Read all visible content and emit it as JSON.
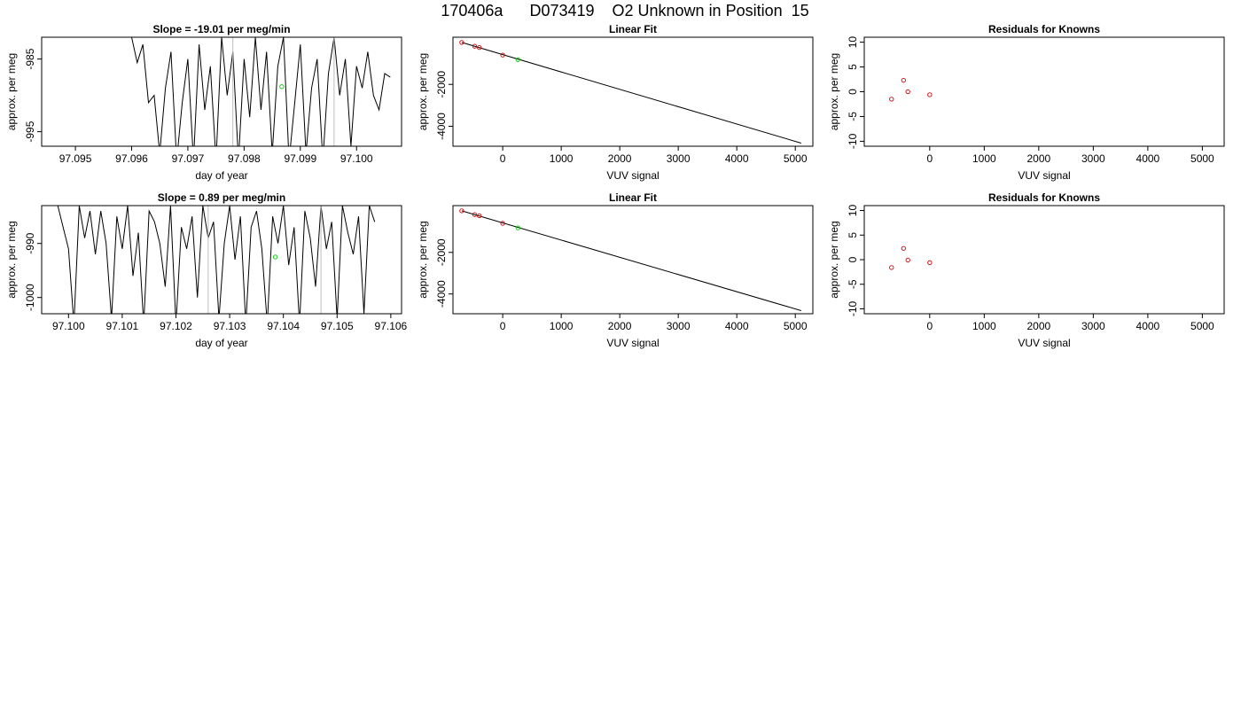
{
  "figure": {
    "title": "170406a      D073419    O2 Unknown in Position  15"
  },
  "chart_data": [
    {
      "type": "line",
      "title": "Slope =  -19.01  per meg/min",
      "xlabel": "day of year",
      "ylabel": "approx. per meg",
      "xlim": [
        97.0944,
        97.1008
      ],
      "ylim": [
        -997,
        -982
      ],
      "xticks": [
        "97.095",
        "97.096",
        "97.097",
        "97.098",
        "97.099",
        "97.100"
      ],
      "yticks": [
        "-985",
        "-995"
      ],
      "series": [
        {
          "style": "line",
          "color": "#000000",
          "x": [
            97.096,
            97.0961,
            97.0962,
            97.0963,
            97.0964,
            97.0965,
            97.0966,
            97.0967,
            97.0968,
            97.0969,
            97.097,
            97.0971,
            97.0972,
            97.0973,
            97.0974,
            97.0975,
            97.0976,
            97.0977,
            97.0978,
            97.0979,
            97.098,
            97.0981,
            97.0982,
            97.0983,
            97.0984,
            97.0985,
            97.0986,
            97.0987,
            97.0988,
            97.0989,
            97.099,
            97.0991,
            97.0992,
            97.0993,
            97.0994,
            97.0995,
            97.0996,
            97.0997,
            97.0998,
            97.0999,
            97.1,
            97.1001,
            97.1002,
            97.1003,
            97.1004,
            97.1005,
            97.1006
          ],
          "y": [
            -982,
            -985.5,
            -983,
            -991,
            -990,
            -998,
            -989,
            -984,
            -999,
            -991,
            -985,
            -999,
            -983,
            -992,
            -986,
            -999,
            -982,
            -990,
            -984,
            -999,
            -985,
            -993,
            -982,
            -992,
            -984,
            -998,
            -986,
            -982,
            -999,
            -991,
            -983,
            -998,
            -989,
            -985,
            -999,
            -987,
            -982,
            -990,
            -985,
            -997,
            -986,
            -989,
            -984,
            -990,
            -992,
            -987,
            -987.5
          ]
        },
        {
          "style": "line",
          "color": "#bebebe",
          "x": [
            97.0978,
            97.0978,
            97.0996,
            97.0996
          ],
          "y": [
            -999,
            -982,
            -999,
            -982
          ]
        },
        {
          "style": "point",
          "color": "#00cc00",
          "x": [
            97.09867
          ],
          "y": [
            -988.8
          ]
        }
      ]
    },
    {
      "type": "scatter",
      "title": "Linear Fit",
      "xlabel": "VUV signal",
      "ylabel": "approx. per meg",
      "xlim": [
        -850,
        5300
      ],
      "ylim": [
        -4950,
        250
      ],
      "xticks": [
        "0",
        "1000",
        "2000",
        "3000",
        "4000",
        "5000"
      ],
      "yticks": [
        "-2000",
        "-4000"
      ],
      "series": [
        {
          "style": "line",
          "color": "#000000",
          "x": [
            -700,
            5100
          ],
          "y": [
            0,
            -4800
          ]
        },
        {
          "style": "point",
          "color": "#cc0000",
          "x": [
            -700,
            -480,
            -400,
            0
          ],
          "y": [
            0,
            -180,
            -240,
            -600
          ]
        },
        {
          "style": "point",
          "color": "#00cc00",
          "x": [
            260
          ],
          "y": [
            -820
          ]
        }
      ]
    },
    {
      "type": "scatter",
      "title": "Residuals for Knowns",
      "xlabel": "VUV signal",
      "ylabel": "approx. per meg",
      "xlim": [
        -1200,
        5400
      ],
      "ylim": [
        -11,
        11
      ],
      "xticks": [
        "0",
        "1000",
        "2000",
        "3000",
        "4000",
        "5000"
      ],
      "yticks": [
        "-10",
        "-5",
        "0",
        "5",
        "10"
      ],
      "series": [
        {
          "style": "point",
          "color": "#cc0000",
          "x": [
            -700,
            -480,
            -400,
            0
          ],
          "y": [
            -1.5,
            2.3,
            0.0,
            -0.6
          ]
        }
      ]
    },
    {
      "type": "line",
      "title": "Slope =  0.89  per meg/min",
      "xlabel": "day of year",
      "ylabel": "approx. per meg",
      "xlim": [
        97.0995,
        97.1062
      ],
      "ylim": [
        -1003,
        -983
      ],
      "xticks": [
        "97.100",
        "97.101",
        "97.102",
        "97.103",
        "97.104",
        "97.105",
        "97.106"
      ],
      "yticks": [
        "-990",
        "-1000"
      ],
      "series": [
        {
          "style": "line",
          "color": "#000000",
          "x": [
            97.0998,
            97.0999,
            97.1,
            97.1001,
            97.1002,
            97.1003,
            97.1004,
            97.1005,
            97.1006,
            97.1007,
            97.1008,
            97.1009,
            97.101,
            97.1011,
            97.1012,
            97.1013,
            97.1014,
            97.1015,
            97.1016,
            97.1017,
            97.1018,
            97.1019,
            97.102,
            97.1021,
            97.1022,
            97.1023,
            97.1024,
            97.1025,
            97.1026,
            97.1027,
            97.1028,
            97.1029,
            97.103,
            97.1031,
            97.1032,
            97.1033,
            97.1034,
            97.1035,
            97.1036,
            97.1037,
            97.1038,
            97.1039,
            97.104,
            97.1041,
            97.1042,
            97.1043,
            97.1044,
            97.1045,
            97.1046,
            97.1047,
            97.1048,
            97.1049,
            97.105,
            97.1051,
            97.1052,
            97.1053,
            97.1054,
            97.1055,
            97.1056,
            97.1057
          ],
          "y": [
            -983,
            -987,
            -991,
            -1005,
            -983,
            -989,
            -984,
            -992,
            -984,
            -990,
            -1004,
            -985,
            -991,
            -983,
            -996,
            -988,
            -1005,
            -984,
            -986,
            -990,
            -998,
            -983,
            -1005,
            -987,
            -991,
            -985,
            -1000,
            -983,
            -989,
            -986,
            -1004,
            -990,
            -983,
            -993,
            -985,
            -1005,
            -987,
            -984,
            -991,
            -1005,
            -985,
            -990,
            -983,
            -994,
            -987,
            -1005,
            -984,
            -989,
            -998,
            -983,
            -991,
            -986,
            -1004,
            -983,
            -988,
            -992,
            -985,
            -1003,
            -983,
            -986
          ]
        },
        {
          "style": "line",
          "color": "#bebebe",
          "x": [
            97.1026,
            97.1026,
            97.1047,
            97.1047
          ],
          "y": [
            -1005,
            -983,
            -1005,
            -983
          ]
        },
        {
          "style": "point",
          "color": "#00cc00",
          "x": [
            97.10385
          ],
          "y": [
            -992.5
          ]
        }
      ]
    },
    {
      "type": "scatter",
      "title": "Linear Fit",
      "xlabel": "VUV signal",
      "ylabel": "approx. per meg",
      "xlim": [
        -850,
        5300
      ],
      "ylim": [
        -4950,
        250
      ],
      "xticks": [
        "0",
        "1000",
        "2000",
        "3000",
        "4000",
        "5000"
      ],
      "yticks": [
        "-2000",
        "-4000"
      ],
      "series": [
        {
          "style": "line",
          "color": "#000000",
          "x": [
            -700,
            5100
          ],
          "y": [
            0,
            -4800
          ]
        },
        {
          "style": "point",
          "color": "#cc0000",
          "x": [
            -700,
            -480,
            -400,
            0
          ],
          "y": [
            0,
            -180,
            -240,
            -600
          ]
        },
        {
          "style": "point",
          "color": "#00cc00",
          "x": [
            260
          ],
          "y": [
            -820
          ]
        }
      ]
    },
    {
      "type": "scatter",
      "title": "Residuals for Knowns",
      "xlabel": "VUV signal",
      "ylabel": "approx. per meg",
      "xlim": [
        -1200,
        5400
      ],
      "ylim": [
        -11,
        11
      ],
      "xticks": [
        "0",
        "1000",
        "2000",
        "3000",
        "4000",
        "5000"
      ],
      "yticks": [
        "-10",
        "-5",
        "0",
        "5",
        "10"
      ],
      "series": [
        {
          "style": "point",
          "color": "#cc0000",
          "x": [
            -700,
            -480,
            -400,
            0
          ],
          "y": [
            -1.6,
            2.3,
            -0.1,
            -0.6
          ]
        }
      ]
    }
  ]
}
